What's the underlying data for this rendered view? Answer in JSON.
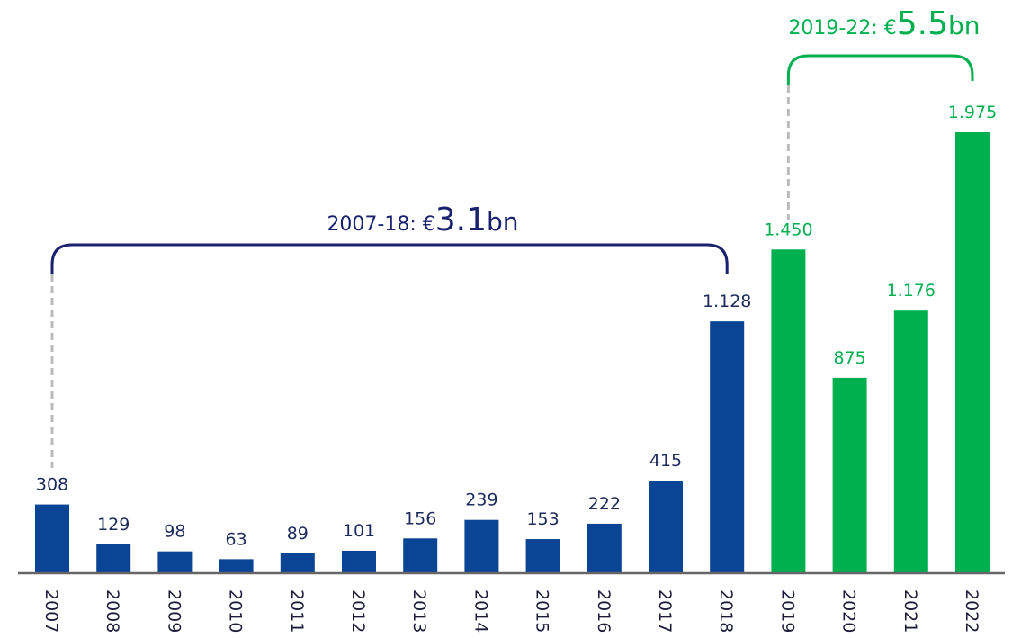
{
  "chart_data": {
    "type": "bar",
    "categories": [
      "2007",
      "2008",
      "2009",
      "2010",
      "2011",
      "2012",
      "2013",
      "2014",
      "2015",
      "2016",
      "2017",
      "2018",
      "2019",
      "2020",
      "2021",
      "2022"
    ],
    "values": [
      308,
      129,
      98,
      63,
      89,
      101,
      156,
      239,
      153,
      222,
      415,
      1128,
      1450,
      875,
      1176,
      1975
    ],
    "value_labels": [
      "308",
      "129",
      "98",
      "63",
      "89",
      "101",
      "156",
      "239",
      "153",
      "222",
      "415",
      "1.128",
      "1.450",
      "875",
      "1.176",
      "1.975"
    ],
    "colors": [
      "#0a4595",
      "#0a4595",
      "#0a4595",
      "#0a4595",
      "#0a4595",
      "#0a4595",
      "#0a4595",
      "#0a4595",
      "#0a4595",
      "#0a4595",
      "#0a4595",
      "#0a4595",
      "#00b04f",
      "#00b04f",
      "#00b04f",
      "#00b04f"
    ],
    "annotations": [
      {
        "prefix": "2007-18: €",
        "amount": "3.1",
        "suffix": "bn",
        "color": "#1a2270"
      },
      {
        "prefix": "2019-22: €",
        "amount": "5.5",
        "suffix": "bn",
        "color": "#00b04f"
      }
    ]
  }
}
